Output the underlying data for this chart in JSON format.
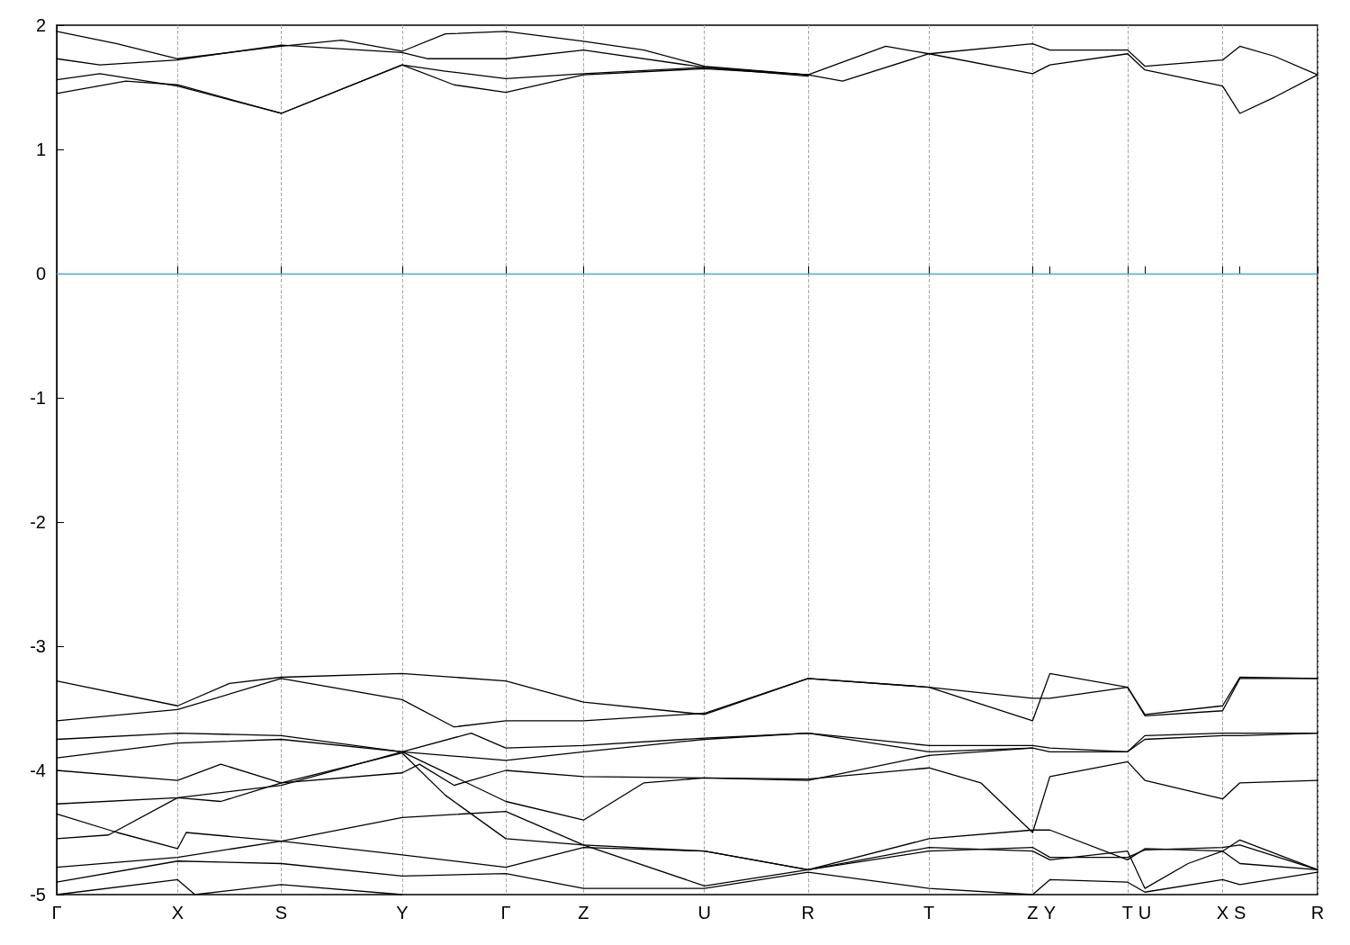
{
  "chart_data": {
    "type": "line",
    "ylim": [
      -5,
      2
    ],
    "yticks": [
      -5,
      -4,
      -3,
      -2,
      -1,
      0,
      1,
      2
    ],
    "categories": [
      "Γ",
      null,
      null,
      null,
      null,
      null,
      null,
      null,
      null,
      null,
      null,
      null,
      null,
      null,
      "X",
      null,
      null,
      null,
      null,
      null,
      null,
      null,
      null,
      null,
      null,
      null,
      "S",
      null,
      null,
      null,
      null,
      null,
      null,
      null,
      null,
      null,
      null,
      null,
      null,
      null,
      "Y",
      null,
      null,
      null,
      null,
      null,
      null,
      null,
      null,
      null,
      null,
      null,
      "Γ",
      null,
      null,
      null,
      null,
      null,
      null,
      null,
      null,
      "Z",
      null,
      null,
      null,
      null,
      null,
      null,
      null,
      null,
      null,
      null,
      null,
      null,
      null,
      "U",
      null,
      null,
      null,
      null,
      null,
      null,
      null,
      null,
      null,
      null,
      null,
      "R",
      null,
      null,
      null,
      null,
      null,
      null,
      null,
      null,
      null,
      null,
      null,
      null,
      null,
      "T",
      null,
      null,
      null,
      null,
      null,
      null,
      null,
      null,
      null,
      null,
      null,
      "Z",
      null,
      "Y",
      null,
      null,
      null,
      null,
      null,
      null,
      null,
      null,
      "T",
      null,
      "U",
      null,
      null,
      null,
      null,
      null,
      null,
      null,
      null,
      "X",
      null,
      "S",
      null,
      null,
      null,
      null,
      null,
      null,
      null,
      null,
      "R"
    ],
    "grid": "x",
    "marker": "none",
    "line_style": "solid",
    "ref_lines": [
      {
        "axis": "y",
        "value": 0,
        "color": "#4aa8d8"
      }
    ],
    "series": [
      {
        "color": "#000000",
        "values": [
          1.95,
          null,
          null,
          null,
          null,
          null,
          null,
          1.85,
          null,
          null,
          null,
          null,
          null,
          null,
          1.73,
          null,
          null,
          null,
          null,
          null,
          null,
          null,
          null,
          null,
          null,
          null,
          1.83,
          null,
          null,
          null,
          null,
          null,
          null,
          1.88,
          null,
          null,
          null,
          null,
          null,
          null,
          1.79,
          null,
          null,
          null,
          null,
          1.93,
          null,
          null,
          null,
          null,
          null,
          null,
          1.95,
          null,
          null,
          null,
          null,
          null,
          null,
          null,
          null,
          1.87,
          null,
          null,
          null,
          null,
          null,
          null,
          1.8,
          null,
          null,
          null,
          null,
          null,
          null,
          1.67,
          null,
          null,
          null,
          null,
          null,
          null,
          null,
          null,
          null,
          null,
          null,
          1.6,
          null,
          null,
          null,
          null,
          null,
          null,
          null,
          null,
          1.83,
          null,
          null,
          null,
          null,
          1.77,
          null,
          null,
          null,
          null,
          null,
          null,
          null,
          null,
          null,
          null,
          null,
          1.85,
          null,
          1.8,
          null,
          null,
          null,
          null,
          null,
          null,
          null,
          null,
          1.8,
          null,
          1.67,
          null,
          null,
          null,
          null,
          null,
          null,
          null,
          null,
          1.72,
          null,
          1.83,
          null,
          null,
          null,
          1.75,
          null,
          null,
          null,
          null,
          1.6
        ]
      },
      {
        "color": "#000000",
        "values": [
          1.73,
          null,
          null,
          null,
          null,
          1.68,
          null,
          null,
          null,
          null,
          null,
          null,
          null,
          null,
          1.72,
          null,
          null,
          null,
          null,
          null,
          null,
          null,
          null,
          null,
          null,
          null,
          1.84,
          null,
          null,
          null,
          null,
          null,
          null,
          null,
          null,
          null,
          null,
          null,
          null,
          null,
          1.78,
          null,
          null,
          1.73,
          null,
          null,
          null,
          null,
          null,
          null,
          null,
          null,
          1.73,
          null,
          null,
          null,
          null,
          null,
          null,
          null,
          null,
          1.8,
          null,
          null,
          null,
          null,
          null,
          null,
          null,
          null,
          null,
          null,
          null,
          null,
          null,
          1.66,
          null,
          null,
          null,
          null,
          null,
          null,
          null,
          null,
          null,
          null,
          null,
          1.6,
          null,
          null,
          null,
          1.55,
          null,
          null,
          null,
          null,
          null,
          null,
          null,
          null,
          null,
          1.77,
          null,
          null,
          null,
          null,
          null,
          null,
          null,
          null,
          null,
          null,
          null,
          1.61,
          null,
          1.68,
          null,
          null,
          null,
          null,
          null,
          null,
          null,
          null,
          1.77,
          null,
          1.64,
          null,
          null,
          null,
          null,
          null,
          null,
          null,
          null,
          1.51,
          null,
          1.29,
          null,
          null,
          null,
          1.42,
          null,
          null,
          null,
          null,
          1.6
        ]
      },
      {
        "color": "#000000",
        "values": [
          1.56,
          null,
          null,
          null,
          null,
          1.61,
          null,
          null,
          null,
          null,
          null,
          null,
          null,
          null,
          1.51,
          null,
          null,
          null,
          null,
          null,
          null,
          null,
          null,
          null,
          null,
          null,
          1.29,
          null,
          null,
          null,
          null,
          null,
          null,
          null,
          null,
          null,
          null,
          null,
          null,
          null,
          1.68,
          null,
          null,
          null,
          null,
          1.63,
          null,
          null,
          null,
          null,
          null,
          null,
          1.57,
          null,
          null,
          null,
          null,
          null,
          null,
          null,
          null,
          1.61,
          null,
          null,
          null,
          null,
          null,
          null,
          null,
          null,
          null,
          null,
          null,
          null,
          null,
          1.66,
          null,
          null,
          null,
          null,
          null,
          null,
          null,
          null,
          null,
          null,
          null,
          1.59,
          null,
          null,
          null,
          null,
          null,
          null,
          null,
          null,
          null,
          null,
          null,
          null,
          null,
          null,
          null,
          null,
          null,
          null,
          null,
          null,
          null,
          null,
          null,
          null,
          null,
          null,
          null,
          null,
          null,
          null,
          null,
          null,
          null,
          null,
          null,
          null,
          null,
          null,
          null,
          null,
          null,
          null,
          null,
          null,
          null,
          null,
          null,
          null,
          null,
          null,
          null,
          null,
          null,
          null,
          null,
          null,
          null,
          null,
          null
        ]
      },
      {
        "color": "#000000",
        "values": [
          1.45,
          null,
          null,
          null,
          null,
          null,
          null,
          null,
          1.55,
          null,
          null,
          null,
          null,
          null,
          1.52,
          null,
          null,
          null,
          null,
          null,
          null,
          null,
          null,
          null,
          null,
          null,
          1.29,
          null,
          null,
          null,
          null,
          null,
          null,
          null,
          null,
          null,
          null,
          null,
          null,
          null,
          1.68,
          null,
          null,
          null,
          null,
          null,
          1.52,
          null,
          null,
          null,
          null,
          null,
          1.46,
          null,
          null,
          null,
          null,
          null,
          null,
          null,
          null,
          1.6,
          null,
          null,
          null,
          null,
          null,
          null,
          null,
          null,
          null,
          null,
          null,
          null,
          null,
          1.65,
          null,
          null,
          null,
          null,
          null,
          null,
          null,
          null,
          null,
          null,
          null,
          1.6,
          null,
          null,
          null,
          null,
          null,
          null,
          null,
          null,
          null,
          null,
          null,
          null,
          null,
          null,
          null,
          null,
          null,
          null,
          null,
          null,
          null,
          null,
          null,
          null,
          null,
          null,
          null,
          null,
          null,
          null,
          null,
          null,
          null,
          null,
          null,
          null,
          null,
          null,
          null,
          null,
          null,
          null,
          null,
          null,
          null,
          null,
          null,
          null,
          null,
          null,
          null,
          null,
          null,
          null,
          null,
          null,
          null,
          null,
          null
        ]
      },
      {
        "color": "#000000",
        "values": [
          -3.28,
          null,
          null,
          null,
          null,
          null,
          null,
          null,
          null,
          null,
          null,
          null,
          null,
          null,
          -3.48,
          null,
          null,
          null,
          null,
          null,
          -3.3,
          null,
          null,
          null,
          null,
          null,
          -3.25,
          null,
          null,
          null,
          null,
          null,
          null,
          null,
          null,
          null,
          null,
          null,
          null,
          null,
          -3.22,
          null,
          null,
          null,
          null,
          null,
          null,
          null,
          null,
          null,
          null,
          null,
          -3.28,
          null,
          null,
          null,
          null,
          null,
          null,
          null,
          null,
          -3.45,
          null,
          null,
          null,
          null,
          null,
          null,
          null,
          null,
          null,
          null,
          null,
          null,
          null,
          -3.55,
          null,
          null,
          null,
          null,
          null,
          null,
          null,
          null,
          null,
          null,
          null,
          -3.26,
          null,
          null,
          null,
          null,
          null,
          null,
          null,
          null,
          null,
          null,
          null,
          null,
          null,
          -3.33,
          null,
          null,
          null,
          null,
          null,
          null,
          null,
          null,
          null,
          null,
          null,
          -3.6,
          null,
          -3.22,
          null,
          null,
          null,
          null,
          null,
          null,
          null,
          null,
          -3.33,
          null,
          -3.55,
          null,
          null,
          null,
          null,
          null,
          null,
          null,
          null,
          -3.48,
          null,
          -3.25,
          null,
          null,
          null,
          null,
          null,
          null,
          null,
          null,
          -3.26
        ]
      },
      {
        "color": "#000000",
        "values": [
          -3.6,
          null,
          null,
          null,
          null,
          null,
          null,
          null,
          null,
          null,
          null,
          null,
          null,
          null,
          -3.51,
          null,
          null,
          null,
          null,
          null,
          null,
          null,
          null,
          null,
          null,
          null,
          -3.26,
          null,
          null,
          null,
          null,
          null,
          null,
          null,
          null,
          null,
          null,
          null,
          null,
          null,
          -3.43,
          null,
          null,
          null,
          null,
          null,
          -3.65,
          null,
          null,
          null,
          null,
          null,
          -3.6,
          null,
          null,
          null,
          null,
          null,
          null,
          null,
          null,
          -3.6,
          null,
          null,
          null,
          null,
          null,
          null,
          null,
          null,
          null,
          null,
          null,
          null,
          null,
          -3.54,
          null,
          null,
          null,
          null,
          null,
          null,
          null,
          null,
          null,
          null,
          null,
          -3.26,
          null,
          null,
          null,
          null,
          null,
          null,
          null,
          null,
          null,
          null,
          null,
          null,
          null,
          -3.33,
          null,
          null,
          null,
          null,
          null,
          null,
          null,
          null,
          null,
          null,
          null,
          -3.42,
          null,
          -3.42,
          null,
          null,
          null,
          null,
          null,
          null,
          null,
          null,
          -3.33,
          null,
          -3.56,
          null,
          null,
          null,
          null,
          null,
          null,
          null,
          null,
          -3.52,
          null,
          -3.26,
          null,
          null,
          null,
          null,
          null,
          null,
          null,
          null,
          -3.26
        ]
      },
      {
        "color": "#000000",
        "values": [
          -3.75,
          null,
          null,
          null,
          null,
          null,
          null,
          null,
          null,
          null,
          null,
          null,
          null,
          null,
          -3.7,
          null,
          null,
          null,
          null,
          null,
          null,
          null,
          null,
          null,
          null,
          null,
          -3.72,
          null,
          null,
          null,
          null,
          null,
          null,
          null,
          null,
          null,
          null,
          null,
          null,
          null,
          -3.85,
          null,
          null,
          null,
          null,
          null,
          null,
          null,
          -3.7,
          null,
          null,
          null,
          -3.82,
          null,
          null,
          null,
          null,
          null,
          null,
          null,
          null,
          -3.8,
          null,
          null,
          null,
          null,
          null,
          null,
          null,
          null,
          null,
          null,
          null,
          null,
          null,
          -3.74,
          null,
          null,
          null,
          null,
          null,
          null,
          null,
          null,
          null,
          null,
          null,
          -3.7,
          null,
          null,
          null,
          null,
          null,
          null,
          null,
          null,
          null,
          null,
          null,
          null,
          null,
          -3.85,
          null,
          null,
          null,
          null,
          null,
          null,
          null,
          null,
          null,
          null,
          null,
          -3.82,
          null,
          -3.85,
          null,
          null,
          null,
          null,
          null,
          null,
          null,
          null,
          -3.85,
          null,
          -3.75,
          null,
          null,
          null,
          null,
          null,
          null,
          null,
          null,
          -3.72,
          null,
          -3.72,
          null,
          null,
          null,
          null,
          null,
          null,
          null,
          null,
          -3.7
        ]
      },
      {
        "color": "#000000",
        "values": [
          -3.9,
          null,
          null,
          null,
          null,
          null,
          null,
          null,
          null,
          null,
          null,
          null,
          null,
          null,
          -3.78,
          null,
          null,
          null,
          null,
          null,
          null,
          null,
          null,
          null,
          null,
          null,
          -3.75,
          null,
          null,
          null,
          null,
          null,
          null,
          null,
          null,
          null,
          null,
          null,
          null,
          null,
          -3.85,
          null,
          null,
          null,
          null,
          null,
          null,
          null,
          null,
          null,
          null,
          null,
          -3.92,
          null,
          null,
          null,
          null,
          null,
          null,
          null,
          null,
          -3.85,
          null,
          null,
          null,
          null,
          null,
          null,
          null,
          null,
          null,
          null,
          null,
          null,
          null,
          -3.75,
          null,
          null,
          null,
          null,
          null,
          null,
          null,
          null,
          null,
          null,
          null,
          -3.7,
          null,
          null,
          null,
          null,
          null,
          null,
          null,
          null,
          null,
          null,
          null,
          null,
          null,
          -3.8,
          null,
          null,
          null,
          null,
          null,
          null,
          null,
          null,
          null,
          null,
          null,
          -3.8,
          null,
          -3.82,
          null,
          null,
          null,
          null,
          null,
          null,
          null,
          null,
          -3.85,
          null,
          -3.72,
          null,
          null,
          null,
          null,
          null,
          null,
          null,
          null,
          -3.7,
          null,
          -3.7,
          null,
          null,
          null,
          null,
          null,
          null,
          null,
          null,
          -3.7
        ]
      },
      {
        "color": "#000000",
        "values": [
          -4.0,
          null,
          null,
          null,
          null,
          null,
          null,
          null,
          null,
          null,
          null,
          null,
          null,
          null,
          -4.08,
          null,
          null,
          null,
          null,
          -3.95,
          null,
          null,
          null,
          null,
          null,
          null,
          -4.1,
          null,
          null,
          null,
          null,
          null,
          null,
          null,
          null,
          null,
          null,
          null,
          null,
          null,
          -4.02,
          null,
          -3.95,
          null,
          null,
          null,
          -4.12,
          null,
          null,
          null,
          null,
          null,
          -4.0,
          null,
          null,
          null,
          null,
          null,
          null,
          null,
          null,
          -4.05,
          null,
          null,
          null,
          null,
          null,
          null,
          null,
          null,
          null,
          null,
          null,
          null,
          null,
          -4.06,
          null,
          null,
          null,
          null,
          null,
          null,
          null,
          null,
          null,
          null,
          null,
          -4.07,
          null,
          null,
          null,
          null,
          null,
          null,
          null,
          null,
          null,
          null,
          null,
          null,
          null,
          -3.98,
          null,
          null,
          null,
          null,
          null,
          -4.1,
          null,
          null,
          null,
          null,
          null,
          -4.5,
          null,
          -4.05,
          null,
          null,
          null,
          null,
          null,
          null,
          null,
          null,
          -3.93,
          null,
          -4.08,
          null,
          null,
          null,
          null,
          null,
          null,
          null,
          null,
          -4.23,
          null,
          -4.1,
          null,
          null,
          null,
          null,
          null,
          null,
          null,
          null,
          -4.08
        ]
      },
      {
        "color": "#000000",
        "values": [
          -4.27,
          null,
          null,
          null,
          null,
          null,
          null,
          null,
          null,
          null,
          null,
          null,
          null,
          null,
          -4.22,
          null,
          null,
          null,
          null,
          null,
          null,
          null,
          null,
          null,
          null,
          null,
          -4.12,
          null,
          null,
          null,
          null,
          null,
          null,
          null,
          null,
          null,
          null,
          null,
          null,
          null,
          -3.85,
          null,
          null,
          -3.95,
          null,
          null,
          null,
          null,
          null,
          null,
          null,
          null,
          -4.25,
          null,
          null,
          null,
          null,
          null,
          null,
          null,
          null,
          -4.4,
          null,
          null,
          null,
          null,
          null,
          null,
          -4.1,
          null,
          null,
          null,
          null,
          null,
          null,
          -4.06,
          null,
          null,
          null,
          null,
          null,
          null,
          null,
          null,
          null,
          null,
          null,
          -4.08,
          null,
          null,
          null,
          null,
          null,
          null,
          null,
          null,
          null,
          null,
          null,
          null,
          null,
          -3.88,
          null,
          null,
          null,
          null,
          null,
          null,
          null,
          null,
          null,
          null,
          null,
          -3.82,
          null,
          null,
          null,
          null,
          null,
          null,
          null,
          null,
          null,
          null,
          null,
          null,
          null,
          null,
          null,
          null,
          null,
          null,
          null,
          null,
          null,
          null,
          null,
          null,
          null,
          null,
          null,
          null,
          null,
          null,
          null,
          null,
          null
        ]
      },
      {
        "color": "#000000",
        "values": [
          -4.35,
          null,
          null,
          null,
          null,
          null,
          null,
          -4.5,
          null,
          null,
          null,
          null,
          null,
          null,
          -4.63,
          -4.5,
          null,
          null,
          null,
          null,
          null,
          null,
          null,
          null,
          null,
          null,
          -4.57,
          null,
          null,
          null,
          null,
          null,
          null,
          null,
          null,
          null,
          null,
          null,
          null,
          null,
          -4.38,
          null,
          null,
          null,
          null,
          null,
          null,
          null,
          null,
          null,
          null,
          null,
          -4.33,
          null,
          null,
          null,
          null,
          null,
          null,
          null,
          null,
          -4.6,
          null,
          null,
          null,
          null,
          null,
          null,
          null,
          null,
          null,
          null,
          null,
          null,
          null,
          -4.65,
          null,
          null,
          null,
          null,
          null,
          null,
          null,
          null,
          null,
          null,
          null,
          -4.8,
          null,
          null,
          null,
          null,
          null,
          null,
          null,
          null,
          null,
          null,
          null,
          null,
          null,
          -4.55,
          null,
          null,
          null,
          null,
          null,
          null,
          null,
          null,
          null,
          null,
          null,
          -4.48,
          null,
          -4.48,
          null,
          null,
          null,
          null,
          null,
          null,
          null,
          null,
          -4.72,
          null,
          -4.63,
          null,
          null,
          null,
          null,
          null,
          null,
          null,
          null,
          -4.65,
          null,
          -4.56,
          null,
          null,
          null,
          null,
          null,
          null,
          null,
          null,
          -4.8
        ]
      },
      {
        "color": "#000000",
        "values": [
          -4.55,
          null,
          null,
          null,
          null,
          null,
          -4.52,
          null,
          null,
          null,
          null,
          null,
          null,
          null,
          -4.22,
          null,
          null,
          null,
          null,
          -4.25,
          null,
          null,
          null,
          null,
          null,
          null,
          -4.1,
          null,
          null,
          null,
          null,
          null,
          null,
          null,
          null,
          null,
          null,
          null,
          null,
          null,
          -3.86,
          null,
          null,
          null,
          null,
          -4.2,
          null,
          null,
          null,
          null,
          null,
          null,
          -4.55,
          null,
          null,
          null,
          null,
          null,
          null,
          null,
          null,
          -4.6,
          null,
          null,
          null,
          null,
          null,
          null,
          null,
          null,
          null,
          null,
          null,
          null,
          null,
          -4.93,
          null,
          null,
          null,
          null,
          null,
          null,
          null,
          null,
          null,
          null,
          null,
          -4.8,
          null,
          null,
          null,
          null,
          null,
          null,
          null,
          null,
          null,
          null,
          null,
          null,
          null,
          -4.65,
          null,
          null,
          null,
          null,
          null,
          null,
          null,
          null,
          null,
          null,
          null,
          -4.62,
          null,
          -4.7,
          null,
          null,
          null,
          null,
          null,
          null,
          null,
          null,
          -4.7,
          null,
          -4.64,
          null,
          null,
          null,
          null,
          null,
          null,
          null,
          null,
          -4.62,
          null,
          -4.6,
          null,
          null,
          null,
          null,
          null,
          null,
          null,
          null,
          -4.8
        ]
      },
      {
        "color": "#000000",
        "values": [
          -4.78,
          null,
          null,
          null,
          null,
          null,
          null,
          null,
          null,
          null,
          null,
          null,
          null,
          null,
          -4.7,
          null,
          null,
          null,
          null,
          null,
          null,
          null,
          null,
          null,
          null,
          null,
          -4.57,
          null,
          null,
          null,
          null,
          null,
          null,
          null,
          null,
          null,
          null,
          null,
          null,
          null,
          -4.68,
          null,
          null,
          null,
          null,
          null,
          null,
          null,
          null,
          null,
          null,
          null,
          -4.78,
          null,
          null,
          null,
          null,
          null,
          null,
          null,
          null,
          -4.62,
          null,
          null,
          null,
          null,
          null,
          null,
          null,
          null,
          null,
          null,
          null,
          null,
          null,
          -4.65,
          null,
          null,
          null,
          null,
          null,
          null,
          null,
          null,
          null,
          null,
          null,
          -4.8,
          null,
          null,
          null,
          null,
          null,
          null,
          null,
          null,
          null,
          null,
          null,
          null,
          null,
          -4.62,
          null,
          null,
          null,
          null,
          null,
          null,
          null,
          null,
          null,
          null,
          null,
          -4.65,
          null,
          -4.72,
          null,
          null,
          null,
          null,
          null,
          null,
          null,
          null,
          -4.65,
          null,
          -4.95,
          null,
          null,
          null,
          null,
          -4.75,
          null,
          null,
          null,
          -4.65,
          null,
          -4.75,
          null,
          null,
          null,
          null,
          null,
          null,
          null,
          null,
          -4.8
        ]
      },
      {
        "color": "#000000",
        "values": [
          -4.9,
          null,
          null,
          null,
          null,
          null,
          null,
          null,
          null,
          null,
          null,
          null,
          null,
          null,
          -4.73,
          null,
          null,
          null,
          null,
          null,
          null,
          null,
          null,
          null,
          null,
          null,
          -4.75,
          null,
          null,
          null,
          null,
          null,
          null,
          null,
          null,
          null,
          null,
          null,
          null,
          null,
          -4.85,
          null,
          null,
          null,
          null,
          null,
          null,
          null,
          null,
          null,
          null,
          null,
          -4.83,
          null,
          null,
          null,
          null,
          null,
          null,
          null,
          null,
          -4.95,
          null,
          null,
          null,
          null,
          null,
          null,
          null,
          null,
          null,
          null,
          null,
          null,
          null,
          -4.95,
          null,
          null,
          null,
          null,
          null,
          null,
          null,
          null,
          null,
          null,
          null,
          -4.82,
          null,
          null,
          null,
          null,
          null,
          null,
          null,
          null,
          null,
          null,
          null,
          null,
          null,
          -4.95,
          null,
          null,
          null,
          null,
          null,
          null,
          null,
          null,
          null,
          null,
          null,
          -5.0,
          null,
          -4.88,
          null,
          null,
          null,
          null,
          null,
          null,
          null,
          null,
          -4.9,
          null,
          -4.98,
          null,
          null,
          null,
          null,
          null,
          null,
          null,
          null,
          -4.88,
          null,
          -4.92,
          null,
          null,
          null,
          null,
          null,
          null,
          null,
          null,
          -4.82
        ]
      },
      {
        "color": "#000000",
        "values": [
          -5.0,
          null,
          null,
          null,
          null,
          null,
          null,
          null,
          null,
          null,
          null,
          null,
          null,
          null,
          -4.88,
          null,
          -5.0,
          null,
          null,
          null,
          null,
          null,
          null,
          null,
          null,
          null,
          -4.92,
          null,
          null,
          null,
          null,
          null,
          null,
          null,
          null,
          null,
          null,
          null,
          null,
          null,
          -5.0,
          null,
          null,
          null,
          null,
          null,
          null,
          null,
          null,
          null,
          null,
          null,
          null,
          null,
          null,
          null,
          null,
          null,
          null,
          null,
          null,
          null,
          null,
          null,
          null,
          null,
          null,
          null,
          null,
          null,
          null,
          null,
          null,
          null,
          null,
          null,
          null,
          null,
          null,
          null,
          null,
          null,
          null,
          null,
          null,
          null,
          null,
          null,
          null,
          null,
          null,
          null,
          null,
          null,
          null,
          null,
          null,
          null,
          null,
          null,
          null,
          null,
          null,
          null,
          null,
          null,
          null,
          null,
          null,
          null,
          null,
          null,
          null,
          null,
          null,
          null,
          null,
          null,
          null,
          null,
          null,
          null,
          null,
          null,
          null,
          null,
          null,
          null,
          null,
          null,
          null,
          null,
          null,
          null,
          null,
          null,
          null,
          null,
          null,
          null,
          null,
          null,
          null,
          null,
          null,
          null,
          null
        ]
      }
    ]
  }
}
